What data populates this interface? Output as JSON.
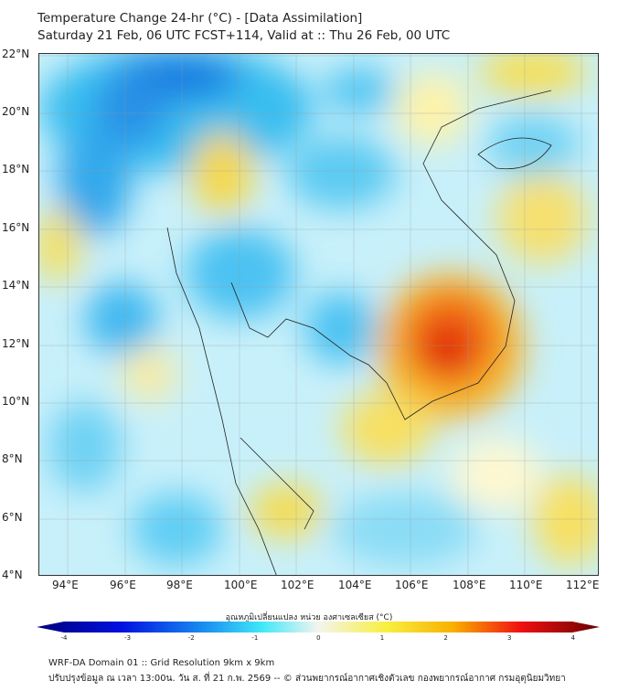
{
  "title": {
    "line1": "Temperature Change 24-hr (°C) - [Data Assimilation]",
    "line2": "Saturday 21 Feb, 06 UTC FCST+114, Valid at :: Thu 26 Feb, 00 UTC"
  },
  "map": {
    "lon_labels": [
      "94°E",
      "96°E",
      "98°E",
      "100°E",
      "102°E",
      "104°E",
      "106°E",
      "108°E",
      "110°E",
      "112°E"
    ],
    "lat_labels": [
      "22°N",
      "20°N",
      "18°N",
      "16°N",
      "14°N",
      "12°N",
      "10°N",
      "8°N",
      "6°N",
      "4°N"
    ],
    "lon_range": [
      93,
      112.6
    ],
    "lat_range": [
      4,
      22.1
    ]
  },
  "colorbar": {
    "label": "อุณหภูมิเปลี่ยนแปลง หน่วย องศาเซลเซียส (°C)",
    "ticks": [
      "-4",
      "-3",
      "-2",
      "-1",
      "0",
      "1",
      "2",
      "3",
      "4"
    ],
    "range": [
      -4,
      4
    ]
  },
  "footer": {
    "line1": "WRF-DA Domain 01 :: Grid Resolution 9km x 9km",
    "line2": "ปรับปรุงข้อมูล ณ เวลา 13:00น. วัน ส. ที่ 21 ก.พ. 2569 -- © ส่วนพยากรณ์อากาศเชิงตัวเลข กองพยากรณ์อากาศ กรมอุตุนิยมวิทยา"
  }
}
